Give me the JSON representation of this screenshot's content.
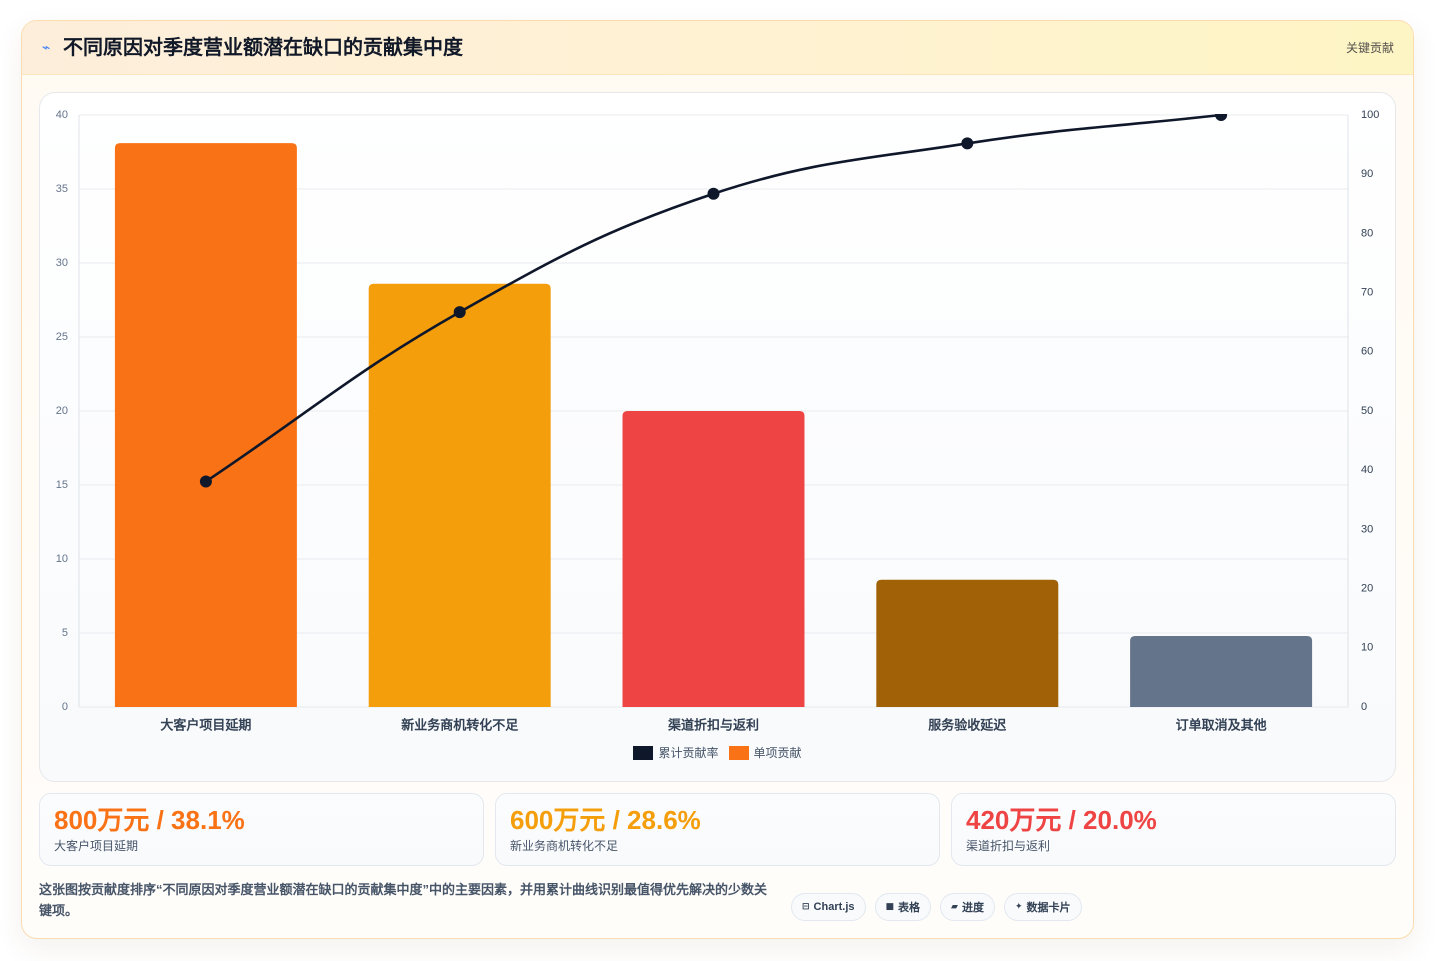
{
  "header": {
    "icon": "pulse-icon",
    "icon_glyph": "⌁",
    "badge": "关键贡献"
  },
  "colors": {
    "header_icon": "#3b82f6",
    "line": "#0f172a",
    "grid": "#e8ebef",
    "axis_text_left": "#64748b",
    "axis_text_right": "#334155",
    "category_text": "#334155"
  },
  "chart_data": {
    "type": "bar",
    "title": "不同原因对季度营业额潜在缺口的贡献集中度",
    "categories": [
      "大客户项目延期",
      "新业务商机转化不足",
      "渠道折扣与返利",
      "服务验收延迟",
      "订单取消及其他"
    ],
    "series": [
      {
        "name": "累计贡献率",
        "type": "line",
        "axis": "right",
        "values": [
          38.1,
          66.7,
          86.7,
          95.2,
          100.0
        ],
        "color": "#0f172a"
      },
      {
        "name": "单项贡献",
        "type": "bar",
        "axis": "left",
        "values": [
          38.1,
          28.6,
          20.0,
          8.6,
          4.8
        ],
        "color": "#f97316",
        "colors": [
          "#f97316",
          "#f59e0b",
          "#ef4444",
          "#a16207",
          "#64748b"
        ]
      }
    ],
    "y_left": {
      "min": 0,
      "max": 40,
      "ticks": [
        0,
        5,
        10,
        15,
        20,
        25,
        30,
        35,
        40
      ]
    },
    "y_right": {
      "min": 0,
      "max": 100,
      "ticks": [
        0,
        10,
        20,
        30,
        40,
        50,
        60,
        70,
        80,
        90,
        100
      ]
    },
    "grid": true,
    "legend": "bottom"
  },
  "stats": [
    {
      "value": "800万元 / 38.1%",
      "label": "大客户项目延期",
      "color": "#f97316"
    },
    {
      "value": "600万元 / 28.6%",
      "label": "新业务商机转化不足",
      "color": "#f59e0b"
    },
    {
      "value": "420万元 / 20.0%",
      "label": "渠道折扣与返利",
      "color": "#ef4444"
    }
  ],
  "footer": {
    "description": "这张图按贡献度排序“不同原因对季度营业额潜在缺口的贡献集中度”中的主要因素，并用累计曲线识别最值得优先解决的少数关键项。",
    "tags": [
      {
        "icon": "chart-window-icon",
        "glyph": "⊟",
        "label": "Chart.js"
      },
      {
        "icon": "table-icon",
        "glyph": "■",
        "label": "表格"
      },
      {
        "icon": "progress-icon",
        "glyph": "▰",
        "label": "进度"
      },
      {
        "icon": "sparkle-icon",
        "glyph": "✦",
        "label": "数据卡片"
      }
    ]
  }
}
